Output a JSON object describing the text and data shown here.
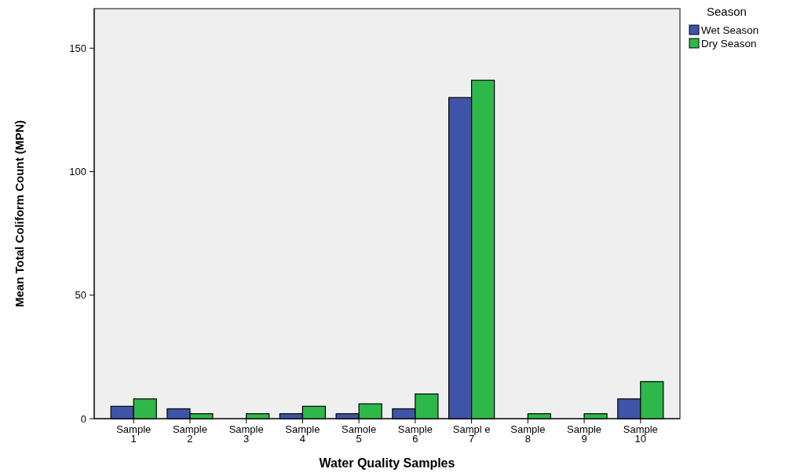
{
  "chart_data": {
    "type": "bar",
    "xlabel": "Water Quality Samples",
    "ylabel": "Mean Total Coliform Count (MPN)",
    "legend_title": "Season",
    "legend": "top right",
    "categories": [
      "Sample\n1",
      "Sample\n2",
      "Sample\n3",
      "Sample\n4",
      "Samole\n5",
      "Sample\n6",
      "Sampl e\n7",
      "Sample\n8",
      "Sample\n9",
      "Sample\n10"
    ],
    "series": [
      {
        "name": "Wet Season",
        "color": "#3f54a8",
        "values": [
          5,
          4,
          0,
          2,
          2,
          4,
          130,
          0,
          0,
          8
        ]
      },
      {
        "name": "Dry Season",
        "color": "#2eb84a",
        "values": [
          8,
          2,
          2,
          5,
          6,
          10,
          137,
          2,
          2,
          15
        ]
      }
    ],
    "ylim": [
      0,
      166
    ],
    "yticks": [
      0,
      50,
      100,
      150
    ]
  }
}
